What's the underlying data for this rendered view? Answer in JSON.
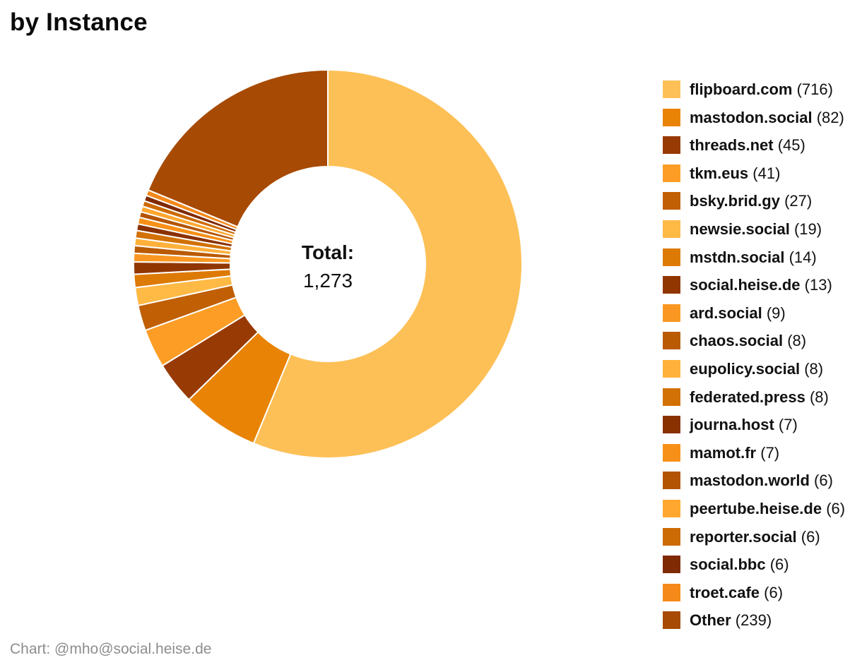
{
  "page": {
    "title": "by Instance",
    "footer": "Chart: @mho@social.heise.de"
  },
  "chart_data": {
    "type": "pie",
    "subtype": "donut",
    "title": "by Instance",
    "center_label": "Total:",
    "center_value": "1,273",
    "total": 1273,
    "legend_position": "right",
    "start_angle_deg": 0,
    "direction": "clockwise",
    "slice_border_color": "#ffffff",
    "series": [
      {
        "label": "flipboard.com",
        "value": 716,
        "color": "#FDC057"
      },
      {
        "label": "mastodon.social",
        "value": 82,
        "color": "#E98305"
      },
      {
        "label": "threads.net",
        "value": 45,
        "color": "#983A03"
      },
      {
        "label": "tkm.eus",
        "value": 41,
        "color": "#FD9D26"
      },
      {
        "label": "bsky.brid.gy",
        "value": 27,
        "color": "#C05F04"
      },
      {
        "label": "newsie.social",
        "value": 19,
        "color": "#FFB945"
      },
      {
        "label": "mstdn.social",
        "value": 14,
        "color": "#DD7A05"
      },
      {
        "label": "social.heise.de",
        "value": 13,
        "color": "#913601"
      },
      {
        "label": "ard.social",
        "value": 9,
        "color": "#FA9722"
      },
      {
        "label": "chaos.social",
        "value": 8,
        "color": "#BA5A03"
      },
      {
        "label": "eupolicy.social",
        "value": 8,
        "color": "#FFB13C"
      },
      {
        "label": "federated.press",
        "value": 8,
        "color": "#D27105"
      },
      {
        "label": "journa.host",
        "value": 7,
        "color": "#8A3102"
      },
      {
        "label": "mamot.fr",
        "value": 7,
        "color": "#F79018"
      },
      {
        "label": "mastodon.world",
        "value": 6,
        "color": "#B35403"
      },
      {
        "label": "peertube.heise.de",
        "value": 6,
        "color": "#FFA72E"
      },
      {
        "label": "reporter.social",
        "value": 6,
        "color": "#CC6A04"
      },
      {
        "label": "social.bbc",
        "value": 6,
        "color": "#7F2A02"
      },
      {
        "label": "troet.cafe",
        "value": 6,
        "color": "#F5891A"
      },
      {
        "label": "Other",
        "value": 239,
        "color": "#A74A03"
      }
    ]
  }
}
